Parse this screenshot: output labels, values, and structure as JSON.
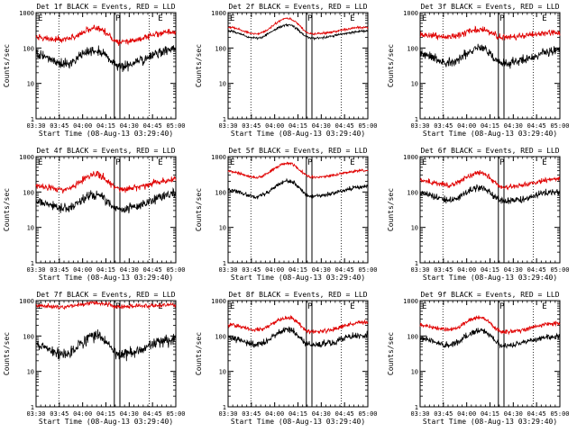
{
  "colors": {
    "events": "#000000",
    "lld": "#e00000",
    "background": "#ffffff",
    "axes": "#000000"
  },
  "chart_data": [
    {
      "type": "line",
      "title": "Det 1f BLACK = Events, RED = LLD",
      "xlabel": "Start Time (08-Aug-13 03:29:40)",
      "ylabel": "Counts/sec",
      "xlim": [
        0,
        100
      ],
      "ylim": [
        1,
        1000
      ],
      "yscale": "log",
      "x_ticks": [
        "03:30",
        "03:45",
        "04:00",
        "04:15",
        "04:30",
        "04:45",
        "05:00"
      ],
      "y_ticks": [
        "1",
        "10",
        "100",
        "1000"
      ],
      "markers": [
        "E",
        "P",
        "E"
      ],
      "series": [
        {
          "name": "Events",
          "color": "#000000",
          "knots": [
            [
              0,
              68
            ],
            [
              20,
              36
            ],
            [
              43,
              90
            ],
            [
              60,
              32
            ],
            [
              100,
              95
            ]
          ],
          "noise": 0.14
        },
        {
          "name": "LLD",
          "color": "#e00000",
          "knots": [
            [
              0,
              195
            ],
            [
              20,
              170
            ],
            [
              43,
              370
            ],
            [
              60,
              150
            ],
            [
              100,
              290
            ]
          ],
          "noise": 0.09
        }
      ]
    },
    {
      "type": "line",
      "title": "Det 2f BLACK = Events, RED = LLD",
      "xlabel": "Start Time (08-Aug-13 03:29:40)",
      "ylabel": "Counts/sec",
      "xlim": [
        0,
        100
      ],
      "ylim": [
        1,
        1000
      ],
      "yscale": "log",
      "x_ticks": [
        "03:30",
        "03:45",
        "04:00",
        "04:15",
        "04:30",
        "04:45",
        "05:00"
      ],
      "y_ticks": [
        "1",
        "10",
        "100",
        "1000"
      ],
      "markers": [
        "E",
        "P",
        "E"
      ],
      "series": [
        {
          "name": "Events",
          "color": "#000000",
          "knots": [
            [
              0,
              300
            ],
            [
              20,
              190
            ],
            [
              43,
              450
            ],
            [
              60,
              190
            ],
            [
              100,
              300
            ]
          ],
          "noise": 0.03
        },
        {
          "name": "LLD",
          "color": "#e00000",
          "knots": [
            [
              0,
              390
            ],
            [
              20,
              250
            ],
            [
              43,
              680
            ],
            [
              60,
              250
            ],
            [
              100,
              390
            ]
          ],
          "noise": 0.03
        }
      ]
    },
    {
      "type": "line",
      "title": "Det 3f BLACK = Events, RED = LLD",
      "xlabel": "Start Time (08-Aug-13 03:29:40)",
      "ylabel": "Counts/sec",
      "xlim": [
        0,
        100
      ],
      "ylim": [
        1,
        1000
      ],
      "yscale": "log",
      "x_ticks": [
        "03:30",
        "03:45",
        "04:00",
        "04:15",
        "04:30",
        "04:45",
        "05:00"
      ],
      "y_ticks": [
        "1",
        "10",
        "100",
        "1000"
      ],
      "markers": [
        "E",
        "P",
        "E"
      ],
      "series": [
        {
          "name": "Events",
          "color": "#000000",
          "knots": [
            [
              0,
              70
            ],
            [
              20,
              40
            ],
            [
              43,
              100
            ],
            [
              60,
              36
            ],
            [
              100,
              85
            ]
          ],
          "noise": 0.13
        },
        {
          "name": "LLD",
          "color": "#e00000",
          "knots": [
            [
              0,
              230
            ],
            [
              20,
              210
            ],
            [
              43,
              330
            ],
            [
              60,
              200
            ],
            [
              100,
              270
            ]
          ],
          "noise": 0.09
        }
      ]
    },
    {
      "type": "line",
      "title": "Det 4f BLACK = Events, RED = LLD",
      "xlabel": "Start Time (08-Aug-13 03:29:40)",
      "ylabel": "Counts/sec",
      "xlim": [
        0,
        100
      ],
      "ylim": [
        1,
        1000
      ],
      "yscale": "log",
      "x_ticks": [
        "03:30",
        "03:45",
        "04:00",
        "04:15",
        "04:30",
        "04:45",
        "05:00"
      ],
      "y_ticks": [
        "1",
        "10",
        "100",
        "1000"
      ],
      "markers": [
        "E",
        "P",
        "E"
      ],
      "series": [
        {
          "name": "Events",
          "color": "#000000",
          "knots": [
            [
              0,
              52
            ],
            [
              20,
              34
            ],
            [
              43,
              85
            ],
            [
              60,
              32
            ],
            [
              100,
              85
            ]
          ],
          "noise": 0.14
        },
        {
          "name": "LLD",
          "color": "#e00000",
          "knots": [
            [
              0,
              145
            ],
            [
              20,
              115
            ],
            [
              43,
              320
            ],
            [
              60,
              120
            ],
            [
              100,
              220
            ]
          ],
          "noise": 0.09
        }
      ]
    },
    {
      "type": "line",
      "title": "Det 5f BLACK = Events, RED = LLD",
      "xlabel": "Start Time (08-Aug-13 03:29:40)",
      "ylabel": "Counts/sec",
      "xlim": [
        0,
        100
      ],
      "ylim": [
        1,
        1000
      ],
      "yscale": "log",
      "x_ticks": [
        "03:30",
        "03:45",
        "04:00",
        "04:15",
        "04:30",
        "04:45",
        "05:00"
      ],
      "y_ticks": [
        "1",
        "10",
        "100",
        "1000"
      ],
      "markers": [
        "E",
        "P",
        "E"
      ],
      "series": [
        {
          "name": "Events",
          "color": "#000000",
          "knots": [
            [
              0,
              115
            ],
            [
              20,
              75
            ],
            [
              43,
              200
            ],
            [
              60,
              75
            ],
            [
              100,
              145
            ]
          ],
          "noise": 0.06
        },
        {
          "name": "LLD",
          "color": "#e00000",
          "knots": [
            [
              0,
              390
            ],
            [
              20,
              260
            ],
            [
              43,
              650
            ],
            [
              60,
              260
            ],
            [
              100,
              410
            ]
          ],
          "noise": 0.04
        }
      ]
    },
    {
      "type": "line",
      "title": "Det 6f BLACK = Events, RED = LLD",
      "xlabel": "Start Time (08-Aug-13 03:29:40)",
      "ylabel": "Counts/sec",
      "xlim": [
        0,
        100
      ],
      "ylim": [
        1,
        1000
      ],
      "yscale": "log",
      "x_ticks": [
        "03:30",
        "03:45",
        "04:00",
        "04:15",
        "04:30",
        "04:45",
        "05:00"
      ],
      "y_ticks": [
        "1",
        "10",
        "100",
        "1000"
      ],
      "markers": [
        "E",
        "P",
        "E"
      ],
      "series": [
        {
          "name": "Events",
          "color": "#000000",
          "knots": [
            [
              0,
              95
            ],
            [
              20,
              60
            ],
            [
              43,
              130
            ],
            [
              60,
              55
            ],
            [
              100,
              100
            ]
          ],
          "noise": 0.1
        },
        {
          "name": "LLD",
          "color": "#e00000",
          "knots": [
            [
              0,
              210
            ],
            [
              20,
              160
            ],
            [
              43,
              350
            ],
            [
              60,
              140
            ],
            [
              100,
              230
            ]
          ],
          "noise": 0.07
        }
      ]
    },
    {
      "type": "line",
      "title": "Det 7f BLACK = Events, RED = LLD",
      "xlabel": "Start Time (08-Aug-13 03:29:40)",
      "ylabel": "Counts/sec",
      "xlim": [
        0,
        100
      ],
      "ylim": [
        1,
        1000
      ],
      "yscale": "log",
      "x_ticks": [
        "03:30",
        "03:45",
        "04:00",
        "04:15",
        "04:30",
        "04:45",
        "05:00"
      ],
      "y_ticks": [
        "1",
        "10",
        "100",
        "1000"
      ],
      "markers": [
        "E",
        "P",
        "E"
      ],
      "series": [
        {
          "name": "Events",
          "color": "#000000",
          "knots": [
            [
              0,
              55
            ],
            [
              20,
              32
            ],
            [
              43,
              105
            ],
            [
              60,
              30
            ],
            [
              100,
              80
            ]
          ],
          "noise": 0.16
        },
        {
          "name": "LLD",
          "color": "#e00000",
          "knots": [
            [
              0,
              720
            ],
            [
              20,
              650
            ],
            [
              43,
              860
            ],
            [
              60,
              680
            ],
            [
              100,
              750
            ]
          ],
          "noise": 0.06
        }
      ]
    },
    {
      "type": "line",
      "title": "Det 8f BLACK = Events, RED = LLD",
      "xlabel": "Start Time (08-Aug-13 03:29:40)",
      "ylabel": "Counts/sec",
      "xlim": [
        0,
        100
      ],
      "ylim": [
        1,
        1000
      ],
      "yscale": "log",
      "x_ticks": [
        "03:30",
        "03:45",
        "04:00",
        "04:15",
        "04:30",
        "04:45",
        "05:00"
      ],
      "y_ticks": [
        "1",
        "10",
        "100",
        "1000"
      ],
      "markers": [
        "E",
        "P",
        "E"
      ],
      "series": [
        {
          "name": "Events",
          "color": "#000000",
          "knots": [
            [
              0,
              90
            ],
            [
              20,
              58
            ],
            [
              43,
              150
            ],
            [
              60,
              55
            ],
            [
              100,
              110
            ]
          ],
          "noise": 0.09
        },
        {
          "name": "LLD",
          "color": "#e00000",
          "knots": [
            [
              0,
              210
            ],
            [
              20,
              150
            ],
            [
              43,
              330
            ],
            [
              60,
              130
            ],
            [
              100,
              240
            ]
          ],
          "noise": 0.06
        }
      ]
    },
    {
      "type": "line",
      "title": "Det 9f BLACK = Events, RED = LLD",
      "xlabel": "Start Time (08-Aug-13 03:29:40)",
      "ylabel": "Counts/sec",
      "xlim": [
        0,
        100
      ],
      "ylim": [
        1,
        1000
      ],
      "yscale": "log",
      "x_ticks": [
        "03:30",
        "03:45",
        "04:00",
        "04:15",
        "04:30",
        "04:45",
        "05:00"
      ],
      "y_ticks": [
        "1",
        "10",
        "100",
        "1000"
      ],
      "markers": [
        "E",
        "P",
        "E"
      ],
      "series": [
        {
          "name": "Events",
          "color": "#000000",
          "knots": [
            [
              0,
              85
            ],
            [
              20,
              55
            ],
            [
              43,
              140
            ],
            [
              60,
              55
            ],
            [
              100,
              100
            ]
          ],
          "noise": 0.09
        },
        {
          "name": "LLD",
          "color": "#e00000",
          "knots": [
            [
              0,
              200
            ],
            [
              20,
              150
            ],
            [
              43,
              330
            ],
            [
              60,
              130
            ],
            [
              100,
              230
            ]
          ],
          "noise": 0.06
        }
      ]
    }
  ]
}
